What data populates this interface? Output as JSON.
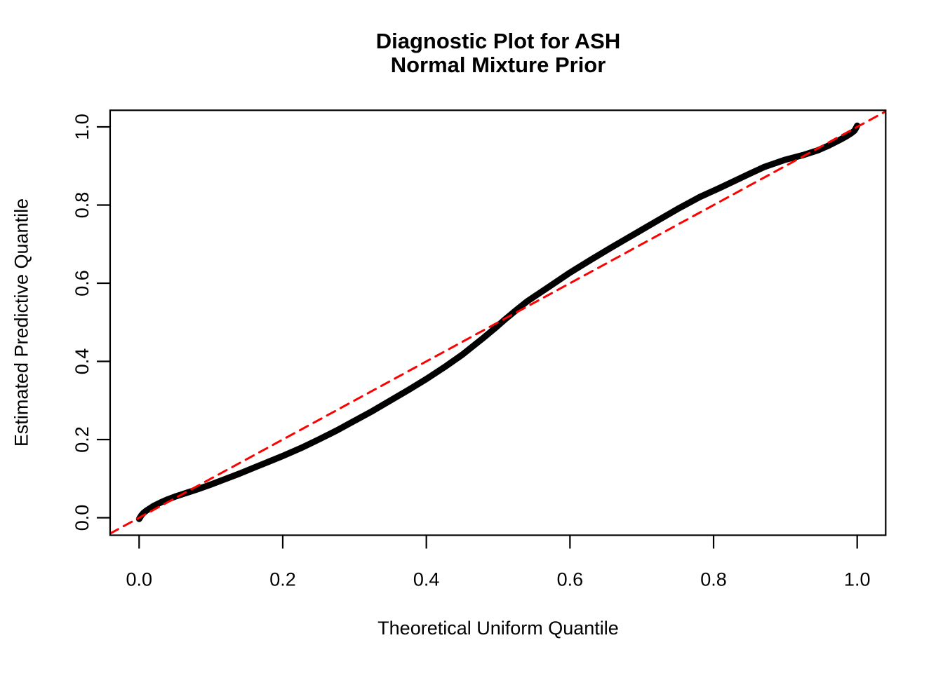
{
  "figure": {
    "background_color": "#FFFFFF",
    "text_color": "#000000"
  },
  "chart_data": {
    "type": "line",
    "title": "Diagnostic Plot for ASH",
    "subtitle": "Normal Mixture Prior",
    "xlabel": "Theoretical Uniform Quantile",
    "ylabel": "Estimated Predictive Quantile",
    "xlim": [
      -0.0404,
      1.0397
    ],
    "ylim": [
      -0.0448,
      1.0425
    ],
    "grid": false,
    "legend": "none",
    "x_ticks": {
      "values": [
        0.0,
        0.2,
        0.4,
        0.6,
        0.8,
        1.0
      ],
      "labels": [
        "0.0",
        "0.2",
        "0.4",
        "0.6",
        "0.8",
        "1.0"
      ]
    },
    "y_ticks": {
      "values": [
        0.0,
        0.2,
        0.4,
        0.6,
        0.8,
        1.0
      ],
      "labels": [
        "0.0",
        "0.2",
        "0.4",
        "0.6",
        "0.8",
        "1.0"
      ]
    },
    "series": [
      {
        "name": "estimated-predictive-quantile-curve",
        "kind": "line",
        "color": "#000000",
        "stroke_width": 9,
        "dash": null,
        "points": [
          [
            0.0,
            -0.003
          ],
          [
            0.003,
            0.006
          ],
          [
            0.006,
            0.012
          ],
          [
            0.01,
            0.018
          ],
          [
            0.015,
            0.024
          ],
          [
            0.02,
            0.03
          ],
          [
            0.03,
            0.039
          ],
          [
            0.04,
            0.047
          ],
          [
            0.05,
            0.054
          ],
          [
            0.065,
            0.063
          ],
          [
            0.08,
            0.072
          ],
          [
            0.1,
            0.085
          ],
          [
            0.12,
            0.099
          ],
          [
            0.14,
            0.113
          ],
          [
            0.16,
            0.128
          ],
          [
            0.18,
            0.143
          ],
          [
            0.2,
            0.158
          ],
          [
            0.225,
            0.178
          ],
          [
            0.25,
            0.2
          ],
          [
            0.275,
            0.223
          ],
          [
            0.3,
            0.248
          ],
          [
            0.325,
            0.273
          ],
          [
            0.35,
            0.3
          ],
          [
            0.375,
            0.327
          ],
          [
            0.4,
            0.355
          ],
          [
            0.425,
            0.385
          ],
          [
            0.45,
            0.417
          ],
          [
            0.48,
            0.461
          ],
          [
            0.495,
            0.484
          ],
          [
            0.51,
            0.508
          ],
          [
            0.525,
            0.531
          ],
          [
            0.54,
            0.553
          ],
          [
            0.57,
            0.59
          ],
          [
            0.6,
            0.627
          ],
          [
            0.63,
            0.661
          ],
          [
            0.66,
            0.694
          ],
          [
            0.69,
            0.726
          ],
          [
            0.72,
            0.758
          ],
          [
            0.75,
            0.79
          ],
          [
            0.78,
            0.82
          ],
          [
            0.81,
            0.845
          ],
          [
            0.85,
            0.88
          ],
          [
            0.87,
            0.897
          ],
          [
            0.9,
            0.916
          ],
          [
            0.925,
            0.928
          ],
          [
            0.945,
            0.94
          ],
          [
            0.96,
            0.952
          ],
          [
            0.975,
            0.966
          ],
          [
            0.985,
            0.976
          ],
          [
            0.991,
            0.983
          ],
          [
            0.996,
            0.99
          ],
          [
            0.998,
            0.996
          ],
          [
            1.0,
            1.003
          ]
        ]
      },
      {
        "name": "identity-reference-line",
        "kind": "line",
        "color": "#FF0000",
        "stroke_width": 3,
        "dash": [
          13,
          9
        ],
        "points": [
          [
            -0.0404,
            -0.0404
          ],
          [
            1.0397,
            1.0397
          ]
        ]
      }
    ]
  }
}
